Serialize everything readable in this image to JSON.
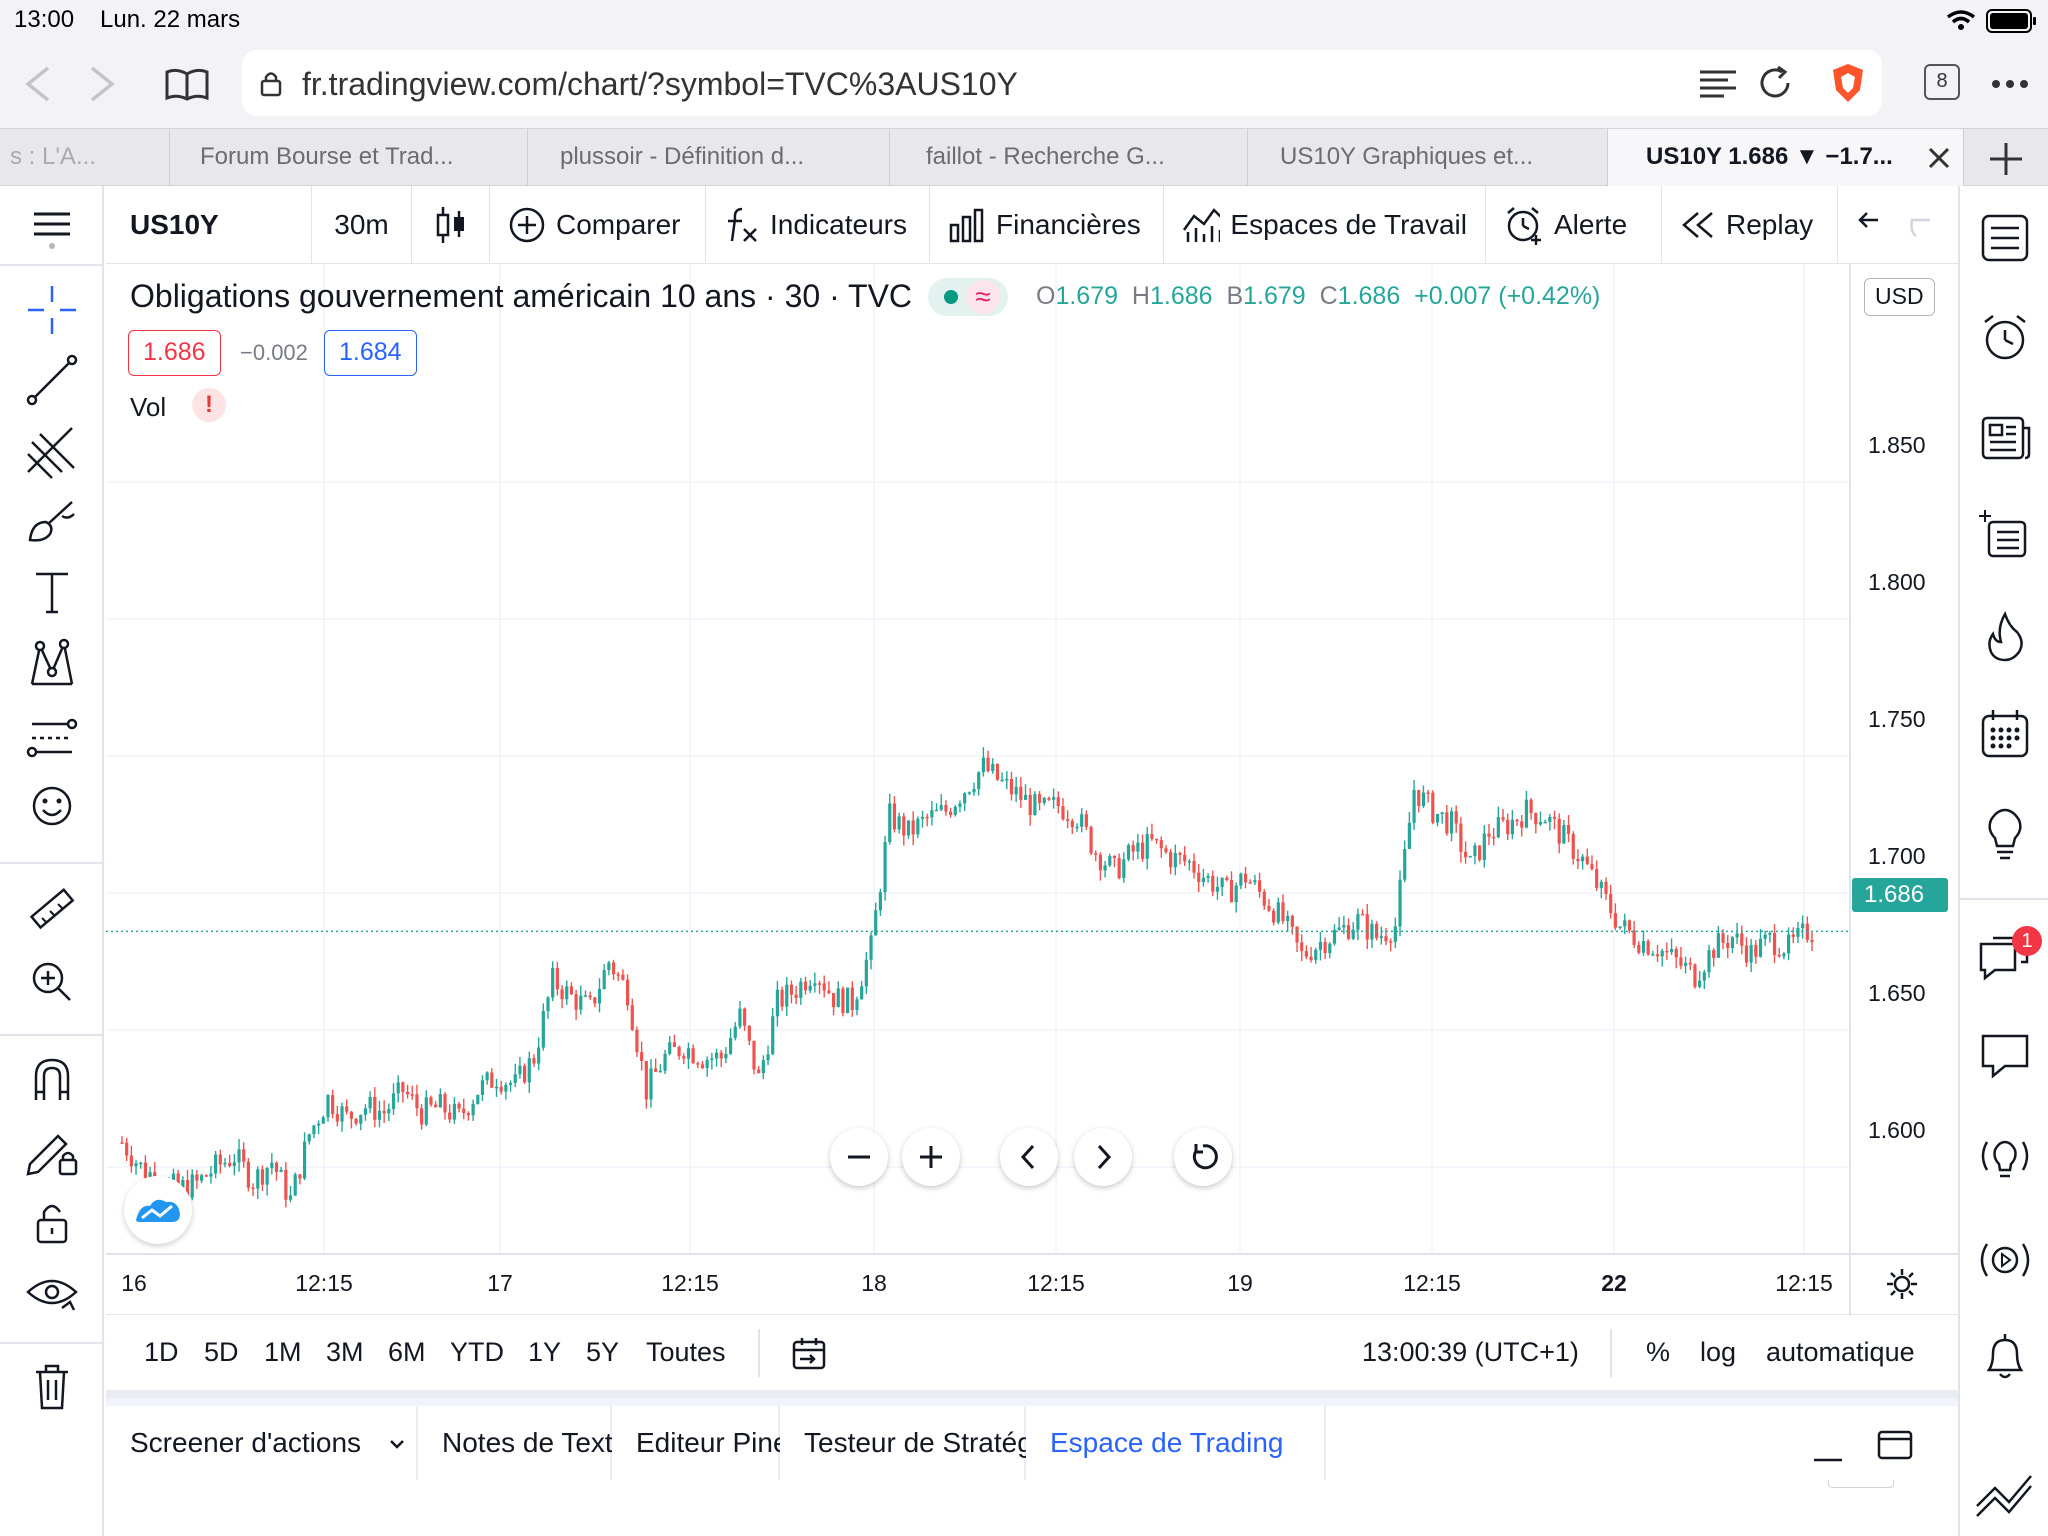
{
  "status": {
    "time": "13:00",
    "date": "Lun. 22 mars"
  },
  "browser": {
    "url": "fr.tradingview.com/chart/?symbol=TVC%3AUS10Y",
    "tab_count": "8",
    "tabs": [
      {
        "label": "s : L'A..."
      },
      {
        "label": "Forum Bourse et Trad..."
      },
      {
        "label": "plussoir - Définition d..."
      },
      {
        "label": "faillot - Recherche G..."
      },
      {
        "label": "US10Y Graphiques et..."
      },
      {
        "label": "US10Y 1.686 ▼ −1.7..."
      }
    ]
  },
  "toolbar": {
    "symbol": "US10Y",
    "interval": "30m",
    "compare": "Comparer",
    "indicators": "Indicateurs",
    "financials": "Financières",
    "workspaces": "Espaces de Travail",
    "alert": "Alerte",
    "replay": "Replay"
  },
  "legend": {
    "title": "Obligations gouvernement américain 10 ans · 30 · TVC",
    "ohlc": {
      "o_label": "O",
      "o": "1.679",
      "h_label": "H",
      "h": "1.686",
      "b_label": "B",
      "b": "1.679",
      "c_label": "C",
      "c": "1.686",
      "change": "+0.007 (+0.42%)"
    },
    "bid": "1.686",
    "spread": "−0.002",
    "ask": "1.684",
    "vol_label": "Vol",
    "vol_warning": "!"
  },
  "price_axis": {
    "currency": "USD",
    "ticks": [
      "1.850",
      "1.800",
      "1.750",
      "1.700",
      "1.650",
      "1.600"
    ],
    "current": "1.686"
  },
  "time_axis": {
    "ticks": [
      "16",
      "12:15",
      "17",
      "12:15",
      "18",
      "12:15",
      "19",
      "12:15",
      "22",
      "12:15"
    ]
  },
  "chart_data": {
    "type": "candlestick",
    "title": "Obligations gouvernement américain 10 ans · 30 · TVC",
    "xlabel": "",
    "ylabel": "",
    "ylim": [
      1.555,
      1.905
    ],
    "current_price": 1.686,
    "up_color": "#26a69a",
    "down_color": "#ef5350",
    "x_ticks": [
      "16",
      "12:15",
      "17",
      "12:15",
      "18",
      "12:15",
      "19",
      "12:15",
      "22",
      "12:15"
    ],
    "close_path": [
      {
        "t": 0,
        "c": 1.609
      },
      {
        "t": 4,
        "c": 1.6
      },
      {
        "t": 8,
        "c": 1.595
      },
      {
        "t": 12,
        "c": 1.592
      },
      {
        "t": 16,
        "c": 1.594
      },
      {
        "t": 20,
        "c": 1.6
      },
      {
        "t": 24,
        "c": 1.604
      },
      {
        "t": 28,
        "c": 1.595
      },
      {
        "t": 32,
        "c": 1.602
      },
      {
        "t": 36,
        "c": 1.588
      },
      {
        "t": 40,
        "c": 1.612
      },
      {
        "t": 44,
        "c": 1.625
      },
      {
        "t": 48,
        "c": 1.618
      },
      {
        "t": 52,
        "c": 1.622
      },
      {
        "t": 56,
        "c": 1.62
      },
      {
        "t": 60,
        "c": 1.628
      },
      {
        "t": 64,
        "c": 1.62
      },
      {
        "t": 68,
        "c": 1.622
      },
      {
        "t": 72,
        "c": 1.618
      },
      {
        "t": 76,
        "c": 1.628
      },
      {
        "t": 80,
        "c": 1.633
      },
      {
        "t": 84,
        "c": 1.63
      },
      {
        "t": 88,
        "c": 1.64
      },
      {
        "t": 92,
        "c": 1.668
      },
      {
        "t": 96,
        "c": 1.662
      },
      {
        "t": 100,
        "c": 1.658
      },
      {
        "t": 104,
        "c": 1.675
      },
      {
        "t": 108,
        "c": 1.664
      },
      {
        "t": 112,
        "c": 1.628
      },
      {
        "t": 116,
        "c": 1.64
      },
      {
        "t": 120,
        "c": 1.644
      },
      {
        "t": 124,
        "c": 1.64
      },
      {
        "t": 128,
        "c": 1.64
      },
      {
        "t": 132,
        "c": 1.655
      },
      {
        "t": 136,
        "c": 1.632
      },
      {
        "t": 140,
        "c": 1.66
      },
      {
        "t": 144,
        "c": 1.665
      },
      {
        "t": 148,
        "c": 1.672
      },
      {
        "t": 152,
        "c": 1.662
      },
      {
        "t": 156,
        "c": 1.66
      },
      {
        "t": 160,
        "c": 1.68
      },
      {
        "t": 164,
        "c": 1.728
      },
      {
        "t": 168,
        "c": 1.722
      },
      {
        "t": 172,
        "c": 1.727
      },
      {
        "t": 176,
        "c": 1.73
      },
      {
        "t": 180,
        "c": 1.738
      },
      {
        "t": 184,
        "c": 1.746
      },
      {
        "t": 188,
        "c": 1.74
      },
      {
        "t": 192,
        "c": 1.735
      },
      {
        "t": 196,
        "c": 1.73
      },
      {
        "t": 200,
        "c": 1.732
      },
      {
        "t": 204,
        "c": 1.728
      },
      {
        "t": 208,
        "c": 1.715
      },
      {
        "t": 212,
        "c": 1.708
      },
      {
        "t": 216,
        "c": 1.715
      },
      {
        "t": 220,
        "c": 1.718
      },
      {
        "t": 224,
        "c": 1.713
      },
      {
        "t": 228,
        "c": 1.711
      },
      {
        "t": 232,
        "c": 1.705
      },
      {
        "t": 236,
        "c": 1.7
      },
      {
        "t": 240,
        "c": 1.706
      },
      {
        "t": 244,
        "c": 1.698
      },
      {
        "t": 248,
        "c": 1.69
      },
      {
        "t": 252,
        "c": 1.677
      },
      {
        "t": 256,
        "c": 1.682
      },
      {
        "t": 260,
        "c": 1.686
      },
      {
        "t": 264,
        "c": 1.69
      },
      {
        "t": 268,
        "c": 1.684
      },
      {
        "t": 272,
        "c": 1.688
      },
      {
        "t": 276,
        "c": 1.738
      },
      {
        "t": 280,
        "c": 1.73
      },
      {
        "t": 284,
        "c": 1.725
      },
      {
        "t": 288,
        "c": 1.71
      },
      {
        "t": 292,
        "c": 1.722
      },
      {
        "t": 296,
        "c": 1.725
      },
      {
        "t": 300,
        "c": 1.73
      },
      {
        "t": 304,
        "c": 1.728
      },
      {
        "t": 308,
        "c": 1.72
      },
      {
        "t": 312,
        "c": 1.712
      },
      {
        "t": 316,
        "c": 1.7
      },
      {
        "t": 320,
        "c": 1.688
      },
      {
        "t": 324,
        "c": 1.683
      },
      {
        "t": 328,
        "c": 1.68
      },
      {
        "t": 332,
        "c": 1.675
      },
      {
        "t": 336,
        "c": 1.67
      },
      {
        "t": 340,
        "c": 1.68
      },
      {
        "t": 344,
        "c": 1.684
      },
      {
        "t": 348,
        "c": 1.678
      },
      {
        "t": 352,
        "c": 1.683
      },
      {
        "t": 356,
        "c": 1.68
      },
      {
        "t": 360,
        "c": 1.686
      }
    ],
    "candle_count": 362
  },
  "range_buttons": [
    "1D",
    "5D",
    "1M",
    "3M",
    "6M",
    "YTD",
    "1Y",
    "5Y",
    "Toutes"
  ],
  "clock": "13:00:39 (UTC+1)",
  "scale_options": {
    "percent": "%",
    "log": "log",
    "auto": "automatique"
  },
  "bottom_tabs": [
    "Screener d'actions",
    "Notes de Texte",
    "Editeur Pine",
    "Testeur de Stratégie",
    "Espace de Trading"
  ],
  "notification_badge": "1"
}
